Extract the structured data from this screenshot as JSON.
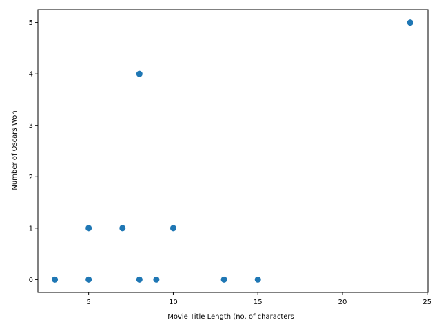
{
  "chart_data": {
    "type": "scatter",
    "title": "",
    "xlabel": "Movie Title Length (no. of characters",
    "ylabel": "Number of Oscars Won",
    "xlim": [
      2.0,
      25.05
    ],
    "ylim": [
      -0.25,
      5.25
    ],
    "xticks": [
      5,
      10,
      15,
      20,
      25
    ],
    "yticks": [
      0,
      1,
      2,
      3,
      4,
      5
    ],
    "grid": false,
    "marker_color": "#1f77b4",
    "points": [
      {
        "x": 3,
        "y": 0
      },
      {
        "x": 5,
        "y": 0
      },
      {
        "x": 5,
        "y": 1
      },
      {
        "x": 7,
        "y": 1
      },
      {
        "x": 8,
        "y": 4
      },
      {
        "x": 8,
        "y": 0
      },
      {
        "x": 9,
        "y": 0
      },
      {
        "x": 10,
        "y": 1
      },
      {
        "x": 13,
        "y": 0
      },
      {
        "x": 15,
        "y": 0
      },
      {
        "x": 24,
        "y": 5
      }
    ]
  }
}
